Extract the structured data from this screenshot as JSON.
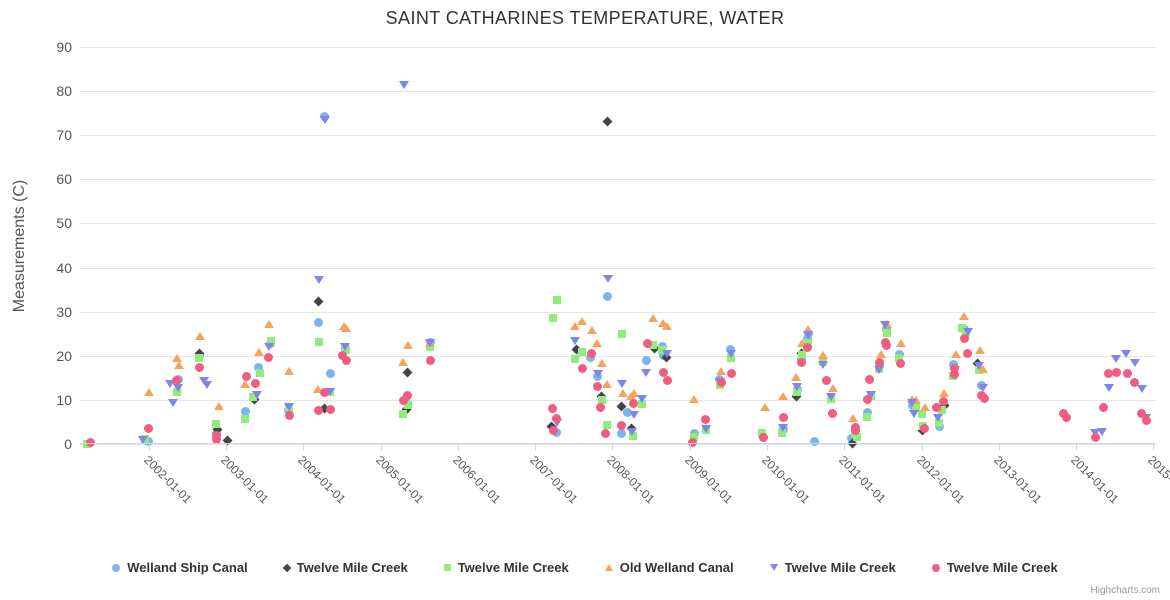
{
  "title": "SAINT CATHARINES TEMPERATURE, WATER",
  "credit": "Highcharts.com",
  "y_axis": {
    "title": "Measurements (C)",
    "ticks": [
      0,
      10,
      20,
      30,
      40,
      50,
      60,
      70,
      80,
      90
    ]
  },
  "x_axis": {
    "tick_labels": [
      "2002-01-01",
      "2003-01-01",
      "2004-01-01",
      "2005-01-01",
      "2006-01-01",
      "2007-01-01",
      "2008-01-01",
      "2009-01-01",
      "2010-01-01",
      "2011-01-01",
      "2012-01-01",
      "2013-01-01",
      "2014-01-01",
      "2015-01-01"
    ],
    "tick_years": [
      2002,
      2003,
      2004,
      2005,
      2006,
      2007,
      2008,
      2009,
      2010,
      2011,
      2012,
      2013,
      2014,
      2015
    ]
  },
  "chart_data": {
    "type": "scatter",
    "title": "SAINT CATHARINES TEMPERATURE, WATER",
    "xlabel": "",
    "ylabel": "Measurements (C)",
    "x_range_years": [
      2001.11,
      2015.02
    ],
    "ylim": [
      0,
      90
    ],
    "grid": "horizontal",
    "legend_position": "bottom",
    "series": [
      {
        "name": "Welland Ship Canal",
        "marker": "circle",
        "color": "#7cb5ec",
        "points": [
          [
            2002.0,
            0.5
          ],
          [
            2002.39,
            14.6
          ],
          [
            2002.65,
            20.0
          ],
          [
            2002.87,
            2.4
          ],
          [
            2003.25,
            7.4
          ],
          [
            2003.42,
            17.4
          ],
          [
            2003.57,
            22.8
          ],
          [
            2003.81,
            7.6
          ],
          [
            2004.2,
            27.5
          ],
          [
            2004.28,
            74.3
          ],
          [
            2004.35,
            16.0
          ],
          [
            2004.54,
            21.7
          ],
          [
            2005.32,
            10.1
          ],
          [
            2005.64,
            23.0
          ],
          [
            2007.27,
            2.6
          ],
          [
            2007.72,
            19.6
          ],
          [
            2007.81,
            15.3
          ],
          [
            2007.94,
            33.4
          ],
          [
            2008.12,
            2.4
          ],
          [
            2008.19,
            7.2
          ],
          [
            2008.44,
            19.0
          ],
          [
            2008.65,
            22.1
          ],
          [
            2008.66,
            20.1
          ],
          [
            2009.06,
            2.4
          ],
          [
            2009.39,
            14.6
          ],
          [
            2009.53,
            21.5
          ],
          [
            2009.94,
            1.9
          ],
          [
            2010.21,
            3.3
          ],
          [
            2010.39,
            12.4
          ],
          [
            2010.45,
            19.2
          ],
          [
            2010.52,
            23.9
          ],
          [
            2010.53,
            25.1
          ],
          [
            2010.62,
            0.6
          ],
          [
            2011.09,
            1.2
          ],
          [
            2011.3,
            7.2
          ],
          [
            2011.45,
            17.8
          ],
          [
            2011.55,
            26.0
          ],
          [
            2011.71,
            20.3
          ],
          [
            2011.88,
            8.7
          ],
          [
            2012.23,
            4.0
          ],
          [
            2012.41,
            18.0
          ],
          [
            2012.56,
            26.0
          ],
          [
            2012.77,
            13.3
          ]
        ]
      },
      {
        "name": "Twelve Mile Creek",
        "marker": "diamond",
        "color": "#434348",
        "points": [
          [
            2002.65,
            20.6
          ],
          [
            2002.89,
            3.3
          ],
          [
            2003.02,
            0.8
          ],
          [
            2003.37,
            10.1
          ],
          [
            2004.2,
            32.3
          ],
          [
            2004.28,
            8.1
          ],
          [
            2005.33,
            7.8
          ],
          [
            2005.35,
            16.2
          ],
          [
            2007.21,
            4.0
          ],
          [
            2007.54,
            21.5
          ],
          [
            2007.86,
            10.8
          ],
          [
            2007.94,
            73.0
          ],
          [
            2008.12,
            8.5
          ],
          [
            2008.25,
            3.5
          ],
          [
            2008.55,
            21.7
          ],
          [
            2008.7,
            19.6
          ],
          [
            2010.38,
            10.8
          ],
          [
            2010.45,
            20.5
          ],
          [
            2011.1,
            0.1
          ],
          [
            2012.01,
            3.1
          ],
          [
            2012.29,
            8.7
          ],
          [
            2012.72,
            18.3
          ]
        ]
      },
      {
        "name": "Twelve Mile Creek",
        "marker": "square",
        "color": "#90ed7d",
        "points": [
          [
            2001.2,
            0.1
          ],
          [
            2001.95,
            1.1
          ],
          [
            2002.36,
            11.7
          ],
          [
            2002.65,
            19.6
          ],
          [
            2002.87,
            4.6
          ],
          [
            2003.24,
            5.6
          ],
          [
            2003.35,
            10.6
          ],
          [
            2003.44,
            16.2
          ],
          [
            2003.58,
            23.3
          ],
          [
            2003.81,
            8.3
          ],
          [
            2004.2,
            23.2
          ],
          [
            2004.34,
            11.9
          ],
          [
            2004.55,
            21.4
          ],
          [
            2005.29,
            6.9
          ],
          [
            2005.35,
            8.9
          ],
          [
            2005.64,
            21.9
          ],
          [
            2007.23,
            28.5
          ],
          [
            2007.28,
            32.6
          ],
          [
            2007.52,
            19.2
          ],
          [
            2007.61,
            20.8
          ],
          [
            2007.86,
            9.9
          ],
          [
            2007.93,
            4.2
          ],
          [
            2008.12,
            24.9
          ],
          [
            2008.26,
            1.9
          ],
          [
            2008.38,
            9.0
          ],
          [
            2008.53,
            22.4
          ],
          [
            2008.64,
            21.2
          ],
          [
            2009.05,
            1.5
          ],
          [
            2009.21,
            3.1
          ],
          [
            2009.39,
            13.3
          ],
          [
            2009.53,
            19.4
          ],
          [
            2009.94,
            2.4
          ],
          [
            2010.19,
            2.4
          ],
          [
            2010.39,
            11.7
          ],
          [
            2010.45,
            20.1
          ],
          [
            2010.53,
            22.8
          ],
          [
            2010.73,
            18.5
          ],
          [
            2010.83,
            10.3
          ],
          [
            2011.14,
            2.4
          ],
          [
            2011.16,
            1.5
          ],
          [
            2011.29,
            6.2
          ],
          [
            2011.34,
            10.8
          ],
          [
            2011.45,
            17.1
          ],
          [
            2011.55,
            25.1
          ],
          [
            2011.71,
            19.6
          ],
          [
            2011.93,
            8.5
          ],
          [
            2012.0,
            6.9
          ],
          [
            2012.02,
            4.0
          ],
          [
            2012.22,
            4.7
          ],
          [
            2012.27,
            7.6
          ],
          [
            2012.4,
            15.5
          ],
          [
            2012.52,
            26.2
          ],
          [
            2012.58,
            25.1
          ],
          [
            2012.74,
            16.7
          ]
        ]
      },
      {
        "name": "Old Welland Canal",
        "marker": "triangle-up",
        "color": "#f7a35c",
        "points": [
          [
            2002.0,
            11.9
          ],
          [
            2002.36,
            19.4
          ],
          [
            2002.39,
            18.0
          ],
          [
            2002.66,
            24.4
          ],
          [
            2002.91,
            8.7
          ],
          [
            2003.24,
            13.5
          ],
          [
            2003.42,
            20.8
          ],
          [
            2003.55,
            27.1
          ],
          [
            2003.82,
            16.5
          ],
          [
            2004.19,
            12.4
          ],
          [
            2004.52,
            26.7
          ],
          [
            2004.55,
            26.2
          ],
          [
            2005.29,
            18.7
          ],
          [
            2005.36,
            22.4
          ],
          [
            2005.64,
            23.0
          ],
          [
            2007.52,
            26.7
          ],
          [
            2007.61,
            27.8
          ],
          [
            2007.73,
            25.8
          ],
          [
            2007.8,
            22.8
          ],
          [
            2007.86,
            18.3
          ],
          [
            2007.93,
            13.5
          ],
          [
            2008.13,
            11.5
          ],
          [
            2008.24,
            10.8
          ],
          [
            2008.28,
            11.5
          ],
          [
            2008.52,
            28.5
          ],
          [
            2008.65,
            27.4
          ],
          [
            2008.71,
            26.7
          ],
          [
            2009.06,
            10.1
          ],
          [
            2009.4,
            16.5
          ],
          [
            2009.97,
            8.5
          ],
          [
            2010.21,
            10.8
          ],
          [
            2010.38,
            15.3
          ],
          [
            2010.45,
            22.8
          ],
          [
            2010.53,
            26.0
          ],
          [
            2010.73,
            20.1
          ],
          [
            2010.85,
            12.6
          ],
          [
            2011.11,
            5.8
          ],
          [
            2011.47,
            20.5
          ],
          [
            2011.55,
            27.1
          ],
          [
            2011.73,
            22.8
          ],
          [
            2011.87,
            10.3
          ],
          [
            2011.93,
            9.9
          ],
          [
            2012.05,
            8.3
          ],
          [
            2012.21,
            8.5
          ],
          [
            2012.29,
            11.5
          ],
          [
            2012.45,
            20.5
          ],
          [
            2012.55,
            29.0
          ],
          [
            2012.75,
            21.4
          ],
          [
            2012.8,
            17.1
          ]
        ]
      },
      {
        "name": "Twelve Mile Creek",
        "marker": "triangle-down",
        "color": "#8085e9",
        "points": [
          [
            2001.92,
            0.8
          ],
          [
            2002.28,
            13.7
          ],
          [
            2002.31,
            9.2
          ],
          [
            2002.38,
            12.6
          ],
          [
            2002.72,
            14.2
          ],
          [
            2002.75,
            13.3
          ],
          [
            2003.4,
            11.0
          ],
          [
            2003.55,
            22.1
          ],
          [
            2003.82,
            8.3
          ],
          [
            2004.2,
            37.1
          ],
          [
            2004.28,
            73.4
          ],
          [
            2004.34,
            11.9
          ],
          [
            2004.54,
            21.9
          ],
          [
            2005.3,
            81.4
          ],
          [
            2005.64,
            22.8
          ],
          [
            2007.28,
            4.7
          ],
          [
            2007.52,
            23.3
          ],
          [
            2007.81,
            15.8
          ],
          [
            2007.94,
            37.3
          ],
          [
            2008.12,
            13.7
          ],
          [
            2008.25,
            2.8
          ],
          [
            2008.28,
            6.5
          ],
          [
            2008.38,
            10.3
          ],
          [
            2008.43,
            16.2
          ],
          [
            2008.7,
            20.5
          ],
          [
            2009.21,
            3.5
          ],
          [
            2009.39,
            14.0
          ],
          [
            2009.54,
            20.5
          ],
          [
            2010.21,
            3.7
          ],
          [
            2010.39,
            13.0
          ],
          [
            2010.53,
            24.6
          ],
          [
            2010.73,
            17.8
          ],
          [
            2010.83,
            10.6
          ],
          [
            2011.34,
            11.0
          ],
          [
            2011.45,
            16.7
          ],
          [
            2011.53,
            26.9
          ],
          [
            2011.88,
            9.2
          ],
          [
            2011.9,
            6.9
          ],
          [
            2012.21,
            5.8
          ],
          [
            2012.43,
            16.7
          ],
          [
            2012.6,
            25.3
          ],
          [
            2012.74,
            17.6
          ],
          [
            2012.79,
            12.6
          ],
          [
            2014.25,
            2.4
          ],
          [
            2014.34,
            2.8
          ],
          [
            2014.43,
            12.6
          ],
          [
            2014.51,
            19.2
          ],
          [
            2014.65,
            20.5
          ],
          [
            2014.76,
            18.3
          ],
          [
            2014.85,
            12.4
          ],
          [
            2014.91,
            6.0
          ]
        ]
      },
      {
        "name": "Twelve Mile Creek",
        "marker": "circle",
        "color": "#f15c80",
        "points": [
          [
            2001.24,
            0.3
          ],
          [
            2002.0,
            3.5
          ],
          [
            2002.36,
            14.4
          ],
          [
            2002.66,
            17.4
          ],
          [
            2002.87,
            1.9
          ],
          [
            2002.88,
            1.0
          ],
          [
            2003.27,
            15.3
          ],
          [
            2003.38,
            13.7
          ],
          [
            2003.55,
            19.6
          ],
          [
            2003.82,
            6.5
          ],
          [
            2004.19,
            7.6
          ],
          [
            2004.28,
            11.7
          ],
          [
            2004.35,
            7.8
          ],
          [
            2004.51,
            20.1
          ],
          [
            2004.56,
            19.0
          ],
          [
            2005.29,
            9.9
          ],
          [
            2005.35,
            11.0
          ],
          [
            2005.64,
            19.0
          ],
          [
            2007.23,
            8.1
          ],
          [
            2007.24,
            3.1
          ],
          [
            2007.28,
            5.8
          ],
          [
            2007.61,
            17.1
          ],
          [
            2007.73,
            20.5
          ],
          [
            2007.8,
            13.1
          ],
          [
            2007.85,
            8.3
          ],
          [
            2007.91,
            2.4
          ],
          [
            2008.12,
            4.2
          ],
          [
            2008.27,
            9.2
          ],
          [
            2008.45,
            22.8
          ],
          [
            2008.66,
            16.2
          ],
          [
            2008.71,
            14.4
          ],
          [
            2009.03,
            0.4
          ],
          [
            2009.21,
            5.6
          ],
          [
            2009.41,
            14.0
          ],
          [
            2009.54,
            16.0
          ],
          [
            2009.96,
            1.5
          ],
          [
            2010.21,
            6.0
          ],
          [
            2010.45,
            18.5
          ],
          [
            2010.52,
            21.9
          ],
          [
            2010.77,
            14.4
          ],
          [
            2010.85,
            6.9
          ],
          [
            2011.14,
            3.7
          ],
          [
            2011.15,
            3.0
          ],
          [
            2011.3,
            10.1
          ],
          [
            2011.33,
            14.6
          ],
          [
            2011.46,
            18.5
          ],
          [
            2011.53,
            23.0
          ],
          [
            2011.55,
            22.4
          ],
          [
            2011.73,
            18.3
          ],
          [
            2012.04,
            3.5
          ],
          [
            2012.19,
            8.3
          ],
          [
            2012.28,
            9.7
          ],
          [
            2012.42,
            17.1
          ],
          [
            2012.43,
            15.8
          ],
          [
            2012.56,
            24.0
          ],
          [
            2012.6,
            20.5
          ],
          [
            2012.77,
            11.0
          ],
          [
            2012.81,
            10.3
          ],
          [
            2013.83,
            6.9
          ],
          [
            2013.88,
            6.0
          ],
          [
            2014.25,
            1.5
          ],
          [
            2014.35,
            8.3
          ],
          [
            2014.42,
            16.0
          ],
          [
            2014.52,
            16.2
          ],
          [
            2014.66,
            16.0
          ],
          [
            2014.76,
            14.0
          ],
          [
            2014.85,
            6.9
          ],
          [
            2014.91,
            5.3
          ]
        ]
      }
    ]
  }
}
